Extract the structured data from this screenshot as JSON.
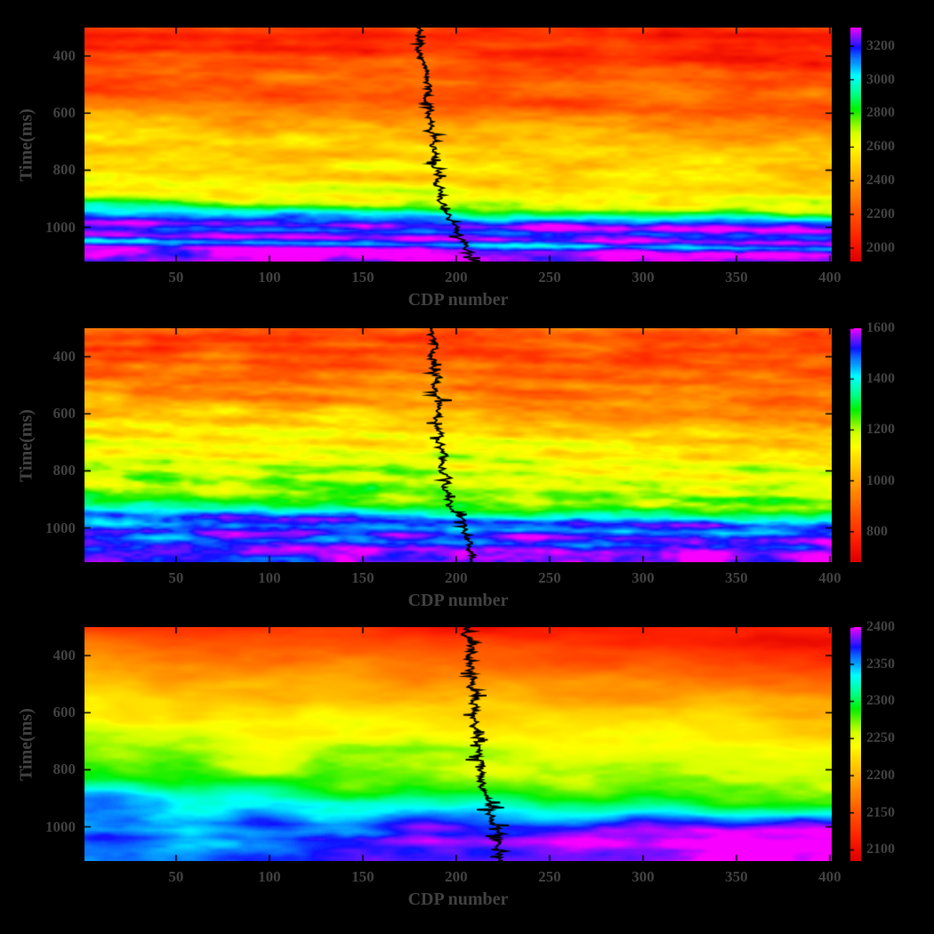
{
  "figure": {
    "background": "#000000",
    "label_color": "#414141",
    "axis_tick_color": "#000000",
    "well_log_color": "#000000"
  },
  "colormap": {
    "description": "rainbow, low=red high=magenta",
    "anchors": [
      [
        0.0,
        0,
        100,
        44
      ],
      [
        0.1,
        8,
        100,
        50
      ],
      [
        0.22,
        22,
        100,
        50
      ],
      [
        0.34,
        38,
        100,
        50
      ],
      [
        0.46,
        55,
        100,
        50
      ],
      [
        0.55,
        70,
        100,
        50
      ],
      [
        0.63,
        110,
        100,
        47
      ],
      [
        0.72,
        155,
        100,
        50
      ],
      [
        0.8,
        183,
        100,
        50
      ],
      [
        0.88,
        220,
        100,
        52
      ],
      [
        0.94,
        256,
        100,
        54
      ],
      [
        1.0,
        298,
        100,
        50
      ]
    ]
  },
  "chart_data": [
    {
      "panel": "top",
      "type": "heatmap",
      "xlabel": "CDP number",
      "ylabel": "Time(ms)",
      "x_range": [
        1,
        401
      ],
      "time_range_ms": [
        300,
        1120
      ],
      "xticks": [
        50,
        100,
        150,
        200,
        250,
        300,
        350,
        400
      ],
      "yticks_ms": [
        400,
        600,
        800,
        1000
      ],
      "colorbar": {
        "vmin": 1920,
        "vmax": 3310,
        "ticks": [
          2000,
          2200,
          2400,
          2600,
          2800,
          3000,
          3200
        ]
      },
      "depth_profile": [
        [
          300,
          2150
        ],
        [
          325,
          2040
        ],
        [
          355,
          2120
        ],
        [
          385,
          2060
        ],
        [
          420,
          2230
        ],
        [
          455,
          2180
        ],
        [
          490,
          2280
        ],
        [
          525,
          2210
        ],
        [
          560,
          2150
        ],
        [
          590,
          2280
        ],
        [
          620,
          2340
        ],
        [
          655,
          2420
        ],
        [
          690,
          2470
        ],
        [
          725,
          2530
        ],
        [
          760,
          2480
        ],
        [
          800,
          2560
        ],
        [
          840,
          2520
        ],
        [
          875,
          2620
        ],
        [
          905,
          2580
        ],
        [
          930,
          2700
        ],
        [
          955,
          2950
        ],
        [
          980,
          3130
        ],
        [
          1000,
          3290
        ],
        [
          1020,
          3160
        ],
        [
          1045,
          3300
        ],
        [
          1065,
          3060
        ],
        [
          1085,
          3300
        ],
        [
          1120,
          3260
        ]
      ],
      "texture": {
        "amp": 150,
        "octaves": [
          [
            36,
            7,
            1
          ],
          [
            14,
            3.4,
            0.6
          ],
          [
            6,
            1.8,
            0.35
          ]
        ],
        "tilt_per_cdp": 0.22,
        "tilt_pivot": 200,
        "tilt_mode": "mid",
        "deep_gain": 0.07,
        "seed": 11
      },
      "well_log": {
        "path_cdp": [
          [
            300,
            180
          ],
          [
            500,
            183
          ],
          [
            700,
            188
          ],
          [
            850,
            190
          ],
          [
            930,
            194
          ],
          [
            1000,
            200
          ],
          [
            1060,
            204
          ],
          [
            1120,
            210
          ]
        ],
        "wiggle_amp": 3.0,
        "spike_amp": 5,
        "spike_prob": 0.1,
        "width": 1.8
      }
    },
    {
      "panel": "middle",
      "type": "heatmap",
      "xlabel": "CDP number",
      "ylabel": "Time(ms)",
      "x_range": [
        1,
        401
      ],
      "time_range_ms": [
        300,
        1120
      ],
      "xticks": [
        50,
        100,
        150,
        200,
        250,
        300,
        350,
        400
      ],
      "yticks_ms": [
        400,
        600,
        800,
        1000
      ],
      "colorbar": {
        "vmin": 680,
        "vmax": 1600,
        "ticks": [
          800,
          1000,
          1200,
          1400,
          1600
        ]
      },
      "depth_profile": [
        [
          300,
          900
        ],
        [
          330,
          820
        ],
        [
          360,
          880
        ],
        [
          390,
          830
        ],
        [
          420,
          910
        ],
        [
          450,
          870
        ],
        [
          480,
          950
        ],
        [
          510,
          900
        ],
        [
          540,
          990
        ],
        [
          570,
          940
        ],
        [
          600,
          1030
        ],
        [
          630,
          1090
        ],
        [
          660,
          1050
        ],
        [
          690,
          1140
        ],
        [
          720,
          1100
        ],
        [
          750,
          1180
        ],
        [
          780,
          1130
        ],
        [
          810,
          1210
        ],
        [
          840,
          1160
        ],
        [
          870,
          1240
        ],
        [
          900,
          1200
        ],
        [
          930,
          1290
        ],
        [
          955,
          1380
        ],
        [
          980,
          1530
        ],
        [
          1005,
          1460
        ],
        [
          1030,
          1560
        ],
        [
          1055,
          1480
        ],
        [
          1080,
          1570
        ],
        [
          1120,
          1550
        ]
      ],
      "texture": {
        "amp": 105,
        "octaves": [
          [
            34,
            6.5,
            1
          ],
          [
            13,
            3,
            0.6
          ],
          [
            5.5,
            1.7,
            0.4
          ]
        ],
        "tilt_per_cdp": 0.28,
        "tilt_pivot": 200,
        "tilt_mode": "mid",
        "deep_gain": 0.09,
        "seed": 22
      },
      "well_log": {
        "path_cdp": [
          [
            300,
            187
          ],
          [
            500,
            189
          ],
          [
            650,
            191
          ],
          [
            800,
            193
          ],
          [
            900,
            196
          ],
          [
            960,
            200
          ],
          [
            1020,
            206
          ],
          [
            1120,
            210
          ]
        ],
        "wiggle_amp": 3.0,
        "spike_amp": 5,
        "spike_prob": 0.1,
        "width": 1.8
      }
    },
    {
      "panel": "bottom",
      "type": "heatmap",
      "xlabel": "CDP number",
      "ylabel": "Time(ms)",
      "x_range": [
        1,
        401
      ],
      "time_range_ms": [
        300,
        1120
      ],
      "xticks": [
        50,
        100,
        150,
        200,
        250,
        300,
        350,
        400
      ],
      "yticks_ms": [
        400,
        600,
        800,
        1000
      ],
      "colorbar": {
        "vmin": 2085,
        "vmax": 2400,
        "ticks": [
          2100,
          2150,
          2200,
          2250,
          2300,
          2350,
          2400
        ]
      },
      "depth_profile": [
        [
          300,
          2105
        ],
        [
          340,
          2125
        ],
        [
          380,
          2140
        ],
        [
          420,
          2155
        ],
        [
          460,
          2170
        ],
        [
          500,
          2185
        ],
        [
          540,
          2200
        ],
        [
          580,
          2215
        ],
        [
          620,
          2225
        ],
        [
          660,
          2235
        ],
        [
          700,
          2245
        ],
        [
          740,
          2255
        ],
        [
          780,
          2262
        ],
        [
          820,
          2268
        ],
        [
          860,
          2278
        ],
        [
          900,
          2295
        ],
        [
          930,
          2315
        ],
        [
          955,
          2340
        ],
        [
          980,
          2360
        ],
        [
          1005,
          2380
        ],
        [
          1030,
          2372
        ],
        [
          1055,
          2390
        ],
        [
          1080,
          2382
        ],
        [
          1120,
          2390
        ]
      ],
      "texture": {
        "amp": 26,
        "octaves": [
          [
            44,
            10,
            1
          ],
          [
            18,
            4.5,
            0.45
          ],
          [
            8,
            2.2,
            0.22
          ]
        ],
        "tilt_per_cdp": 0.3,
        "tilt_pivot": 230,
        "tilt_mode": "flat",
        "deep_gain": 0.15,
        "seed": 33
      },
      "well_log": {
        "path_cdp": [
          [
            300,
            206
          ],
          [
            500,
            209
          ],
          [
            700,
            211
          ],
          [
            850,
            214
          ],
          [
            950,
            218
          ],
          [
            1020,
            222
          ],
          [
            1120,
            225
          ]
        ],
        "wiggle_amp": 3.5,
        "spike_amp": 9,
        "spike_prob": 0.12,
        "width": 1.8
      }
    }
  ]
}
